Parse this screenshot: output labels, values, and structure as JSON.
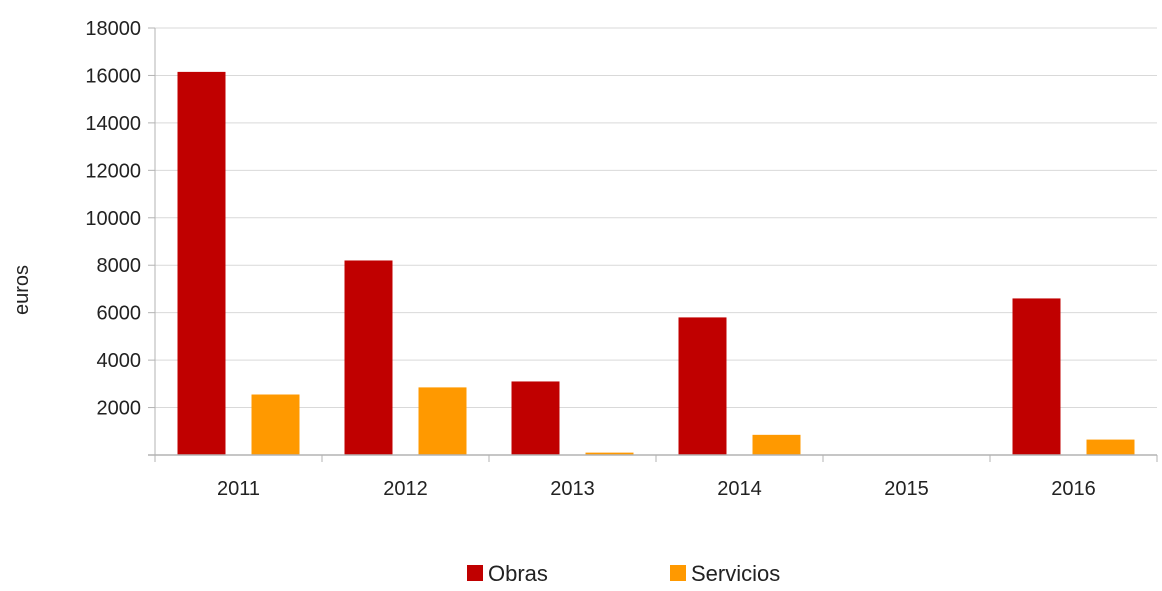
{
  "chart_data": {
    "type": "bar",
    "title": "",
    "xlabel": "",
    "ylabel": "euros",
    "categories": [
      "2011",
      "2012",
      "2013",
      "2014",
      "2015",
      "2016"
    ],
    "series": [
      {
        "name": "Obras",
        "color": "#c00000",
        "values": [
          16150,
          8200,
          3100,
          5800,
          0,
          6600
        ]
      },
      {
        "name": "Servicios",
        "color": "#ff9900",
        "values": [
          2550,
          2850,
          100,
          850,
          0,
          650
        ]
      }
    ],
    "ylim": [
      0,
      18000
    ],
    "yticks": [
      2000,
      4000,
      6000,
      8000,
      10000,
      12000,
      14000,
      16000,
      18000
    ],
    "grid": true,
    "legend_position": "bottom",
    "colors": {
      "grid": "#d9d9d9",
      "axis": "#b3b3b3",
      "text": "#222222"
    }
  }
}
